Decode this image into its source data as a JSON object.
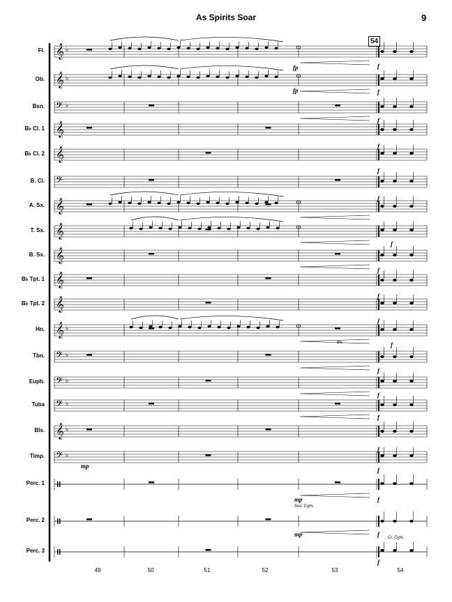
{
  "header": {
    "title": "As Spirits Soar",
    "page_number": "9"
  },
  "rehearsal_mark": "54",
  "instruments": [
    "Fl.",
    "Ob.",
    "Bsn.",
    "B♭ Cl. 1",
    "B♭ Cl. 2",
    "B. Cl.",
    "A. Sx.",
    "T. Sx.",
    "B. Sx.",
    "B♭ Tpt. 1",
    "B♭ Tpt. 2",
    "Hn.",
    "Tbn.",
    "Euph.",
    "Tuba",
    "Bls.",
    "Timp.",
    "Perc. 1",
    "Perc. 2",
    "Perc. 3"
  ],
  "measure_numbers": [
    "49",
    "50",
    "51",
    "52",
    "53",
    "54"
  ],
  "dynamics": {
    "fp": "fp",
    "f": "f",
    "mp": "mp"
  },
  "annotations": {
    "div": "div.",
    "sus_cym": "Sus. Cym.",
    "cr_cym": "Cr. Cym."
  }
}
